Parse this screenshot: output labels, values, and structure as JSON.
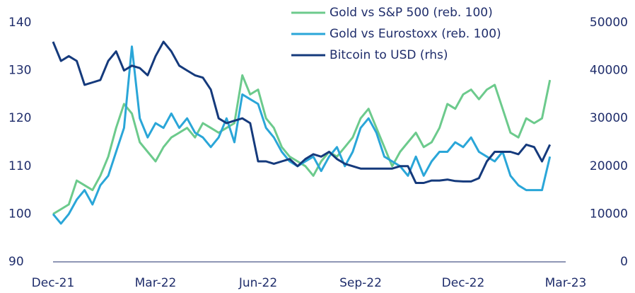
{
  "chart_data": {
    "type": "line",
    "categories": [
      "Dec-21",
      null,
      null,
      null,
      null,
      null,
      null,
      null,
      null,
      null,
      null,
      null,
      null,
      "Mar-22",
      null,
      null,
      null,
      null,
      null,
      null,
      null,
      null,
      null,
      null,
      null,
      null,
      "Jun-22",
      null,
      null,
      null,
      null,
      null,
      null,
      null,
      null,
      null,
      null,
      null,
      null,
      "Sep-22",
      null,
      null,
      null,
      null,
      null,
      null,
      null,
      null,
      null,
      null,
      null,
      null,
      "Dec-22",
      null,
      null,
      null,
      null,
      null,
      null,
      null,
      null,
      null,
      null,
      null,
      null,
      "Mar-23"
    ],
    "series": [
      {
        "name": "Gold vs S&P 500 (reb. 100)",
        "color": "#6cca8c",
        "axis": "y",
        "values": [
          100,
          101,
          102,
          107,
          106,
          105,
          108,
          112,
          118,
          123,
          121,
          115,
          113,
          111,
          114,
          116,
          117,
          118,
          116,
          119,
          118,
          117,
          118,
          119,
          129,
          125,
          126,
          120,
          118,
          114,
          112,
          111,
          110,
          108,
          111,
          113,
          112,
          114,
          116,
          120,
          122,
          118,
          114,
          110,
          113,
          115,
          117,
          114,
          115,
          118,
          123,
          122,
          125,
          126,
          124,
          126,
          127,
          122,
          117,
          116,
          120,
          119,
          120,
          128,
          null,
          null
        ]
      },
      {
        "name": "Gold vs Eurostoxx (reb. 100)",
        "color": "#2aa6d8",
        "axis": "y",
        "values": [
          100,
          98,
          100,
          103,
          105,
          102,
          106,
          108,
          113,
          118,
          135,
          120,
          116,
          119,
          118,
          121,
          118,
          120,
          117,
          116,
          114,
          116,
          120,
          115,
          125,
          124,
          123,
          118,
          116,
          113,
          111,
          110,
          111,
          112,
          109,
          112,
          114,
          110,
          113,
          118,
          120,
          117,
          112,
          111,
          110,
          108,
          112,
          108,
          111,
          113,
          113,
          115,
          114,
          116,
          113,
          112,
          111,
          113,
          108,
          106,
          105,
          105,
          105,
          112,
          null,
          null
        ]
      },
      {
        "name": "Bitcoin to USD (rhs)",
        "color": "#153a7c",
        "axis": "y2",
        "values": [
          46000,
          42000,
          43000,
          42000,
          37000,
          37500,
          38000,
          42000,
          44000,
          40000,
          41000,
          40500,
          39000,
          43000,
          46000,
          44000,
          41000,
          40000,
          39000,
          38500,
          36000,
          30000,
          29000,
          29500,
          30000,
          29000,
          21000,
          21000,
          20500,
          21000,
          21500,
          20000,
          21500,
          22500,
          22000,
          23000,
          21500,
          20500,
          20000,
          19500,
          19500,
          19500,
          19500,
          19500,
          20000,
          20000,
          16500,
          16500,
          17000,
          17000,
          17200,
          16900,
          16800,
          16800,
          17500,
          21000,
          23000,
          23000,
          23000,
          22500,
          24500,
          24000,
          21000,
          24500,
          null,
          null
        ]
      }
    ],
    "ylim": [
      90,
      140
    ],
    "yticks": [
      90,
      100,
      110,
      120,
      130,
      140
    ],
    "y2lim": [
      0,
      50000
    ],
    "y2ticks": [
      0,
      10000,
      20000,
      30000,
      40000,
      50000
    ],
    "grid": false,
    "legend": "top"
  }
}
